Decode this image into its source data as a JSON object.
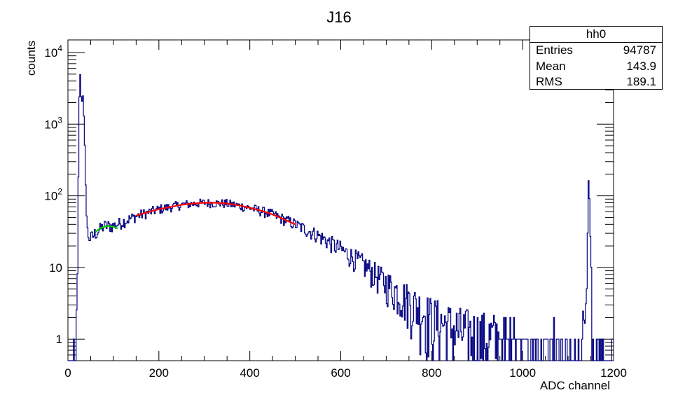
{
  "chart_data": {
    "type": "histogram",
    "title": "J16",
    "xlabel": "ADC channel",
    "ylabel": "counts",
    "xlim": [
      0,
      1200
    ],
    "ylim": [
      0.5,
      15000
    ],
    "yscale": "log",
    "grid": false,
    "x_ticks": [
      "0",
      "200",
      "400",
      "600",
      "800",
      "1000",
      "1200"
    ],
    "y_ticks": [
      {
        "value": 1,
        "base": "1",
        "exp": ""
      },
      {
        "value": 10,
        "base": "10",
        "exp": ""
      },
      {
        "value": 100,
        "base": "10",
        "exp": "2"
      },
      {
        "value": 1000,
        "base": "10",
        "exp": "3"
      },
      {
        "value": 10000,
        "base": "10",
        "exp": "4"
      }
    ],
    "histogram_color": "#000080",
    "histogram_profile": [
      [
        0,
        0.4
      ],
      [
        15,
        0.4
      ],
      [
        18,
        1
      ],
      [
        20,
        3
      ],
      [
        22,
        30
      ],
      [
        24,
        1000
      ],
      [
        26,
        6000
      ],
      [
        28,
        4000
      ],
      [
        30,
        1500
      ],
      [
        32,
        3000
      ],
      [
        34,
        2000
      ],
      [
        36,
        800
      ],
      [
        38,
        300
      ],
      [
        40,
        80
      ],
      [
        42,
        35
      ],
      [
        45,
        28
      ],
      [
        50,
        25
      ],
      [
        60,
        30
      ],
      [
        80,
        38
      ],
      [
        100,
        38
      ],
      [
        150,
        52
      ],
      [
        200,
        65
      ],
      [
        250,
        75
      ],
      [
        300,
        80
      ],
      [
        350,
        78
      ],
      [
        400,
        68
      ],
      [
        450,
        55
      ],
      [
        500,
        40
      ],
      [
        550,
        28
      ],
      [
        600,
        18
      ],
      [
        650,
        11
      ],
      [
        700,
        6
      ],
      [
        750,
        3.5
      ],
      [
        800,
        2
      ],
      [
        850,
        1.4
      ],
      [
        900,
        1.1
      ],
      [
        1000,
        0.9
      ],
      [
        1100,
        0.8
      ],
      [
        1130,
        0.8
      ],
      [
        1138,
        2
      ],
      [
        1142,
        12
      ],
      [
        1145,
        150
      ],
      [
        1148,
        60
      ],
      [
        1151,
        8
      ],
      [
        1153,
        0.4
      ],
      [
        1200,
        0.4
      ]
    ],
    "fits": [
      {
        "color": "#00cc00",
        "x": [
          60,
          70,
          80,
          90,
          100,
          110
        ],
        "y": [
          31,
          35,
          37,
          38,
          37,
          35
        ]
      },
      {
        "color": "#ff0000",
        "x": [
          150,
          175,
          200,
          225,
          250,
          275,
          300,
          325,
          350,
          375,
          400,
          425,
          450,
          475,
          500
        ],
        "y": [
          53,
          59,
          65,
          70,
          75,
          78,
          80,
          80,
          78,
          74,
          68,
          62,
          55,
          47,
          40
        ]
      }
    ]
  },
  "stats": {
    "title": "hh0",
    "rows": [
      {
        "label": "Entries",
        "value": "94787"
      },
      {
        "label": "Mean",
        "value": "143.9"
      },
      {
        "label": "RMS",
        "value": "189.1"
      }
    ]
  }
}
